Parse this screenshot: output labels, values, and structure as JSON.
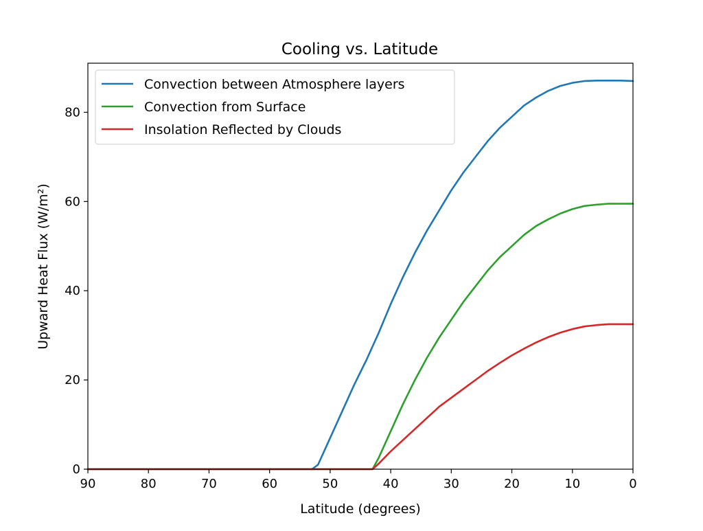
{
  "chart_data": {
    "type": "line",
    "title": "Cooling vs. Latitude",
    "xlabel": "Latitude (degrees)",
    "ylabel": "Upward Heat Flux (W/m²)",
    "xlim": [
      90,
      0
    ],
    "ylim": [
      0,
      91
    ],
    "x_ticks": [
      90,
      80,
      70,
      60,
      50,
      40,
      30,
      20,
      10,
      0
    ],
    "y_ticks": [
      0,
      20,
      40,
      60,
      80
    ],
    "grid": false,
    "legend_position": "top-left",
    "x": [
      90,
      80,
      70,
      60,
      55,
      53,
      52,
      50,
      48,
      46,
      44,
      43,
      42,
      40,
      38,
      36,
      34,
      32,
      30,
      28,
      26,
      24,
      22,
      20,
      18,
      16,
      14,
      12,
      10,
      8,
      6,
      4,
      2,
      0
    ],
    "series": [
      {
        "name": "Convection between Atmosphere layers",
        "color": "#1f77b4",
        "values": [
          0,
          0,
          0,
          0,
          0,
          0,
          1,
          7,
          13,
          19,
          24.5,
          27.5,
          30.5,
          37,
          43,
          48.5,
          53.5,
          58,
          62.5,
          66.5,
          70,
          73.5,
          76.5,
          79,
          81.5,
          83.3,
          84.8,
          85.9,
          86.6,
          87,
          87.1,
          87.1,
          87.1,
          87
        ]
      },
      {
        "name": "Convection from Surface",
        "color": "#2ca02c",
        "values": [
          0,
          0,
          0,
          0,
          0,
          0,
          0,
          0,
          0,
          0,
          0,
          0,
          2.5,
          8.5,
          14.5,
          20,
          25,
          29.5,
          33.5,
          37.5,
          41,
          44.5,
          47.5,
          50,
          52.5,
          54.5,
          56,
          57.3,
          58.3,
          59,
          59.3,
          59.5,
          59.5,
          59.5
        ]
      },
      {
        "name": "Insolation Reflected by Clouds",
        "color": "#d62728",
        "values": [
          0,
          0,
          0,
          0,
          0,
          0,
          0,
          0,
          0,
          0,
          0,
          0,
          1.2,
          4,
          6.5,
          9,
          11.5,
          14,
          16,
          18,
          20,
          22,
          23.8,
          25.5,
          27,
          28.4,
          29.6,
          30.6,
          31.4,
          32,
          32.3,
          32.5,
          32.5,
          32.5
        ]
      }
    ]
  }
}
